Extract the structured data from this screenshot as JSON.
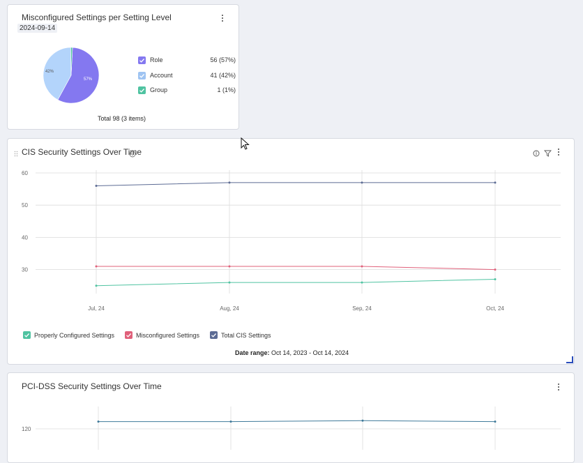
{
  "widget1": {
    "title": "Misconfigured Settings per Setting Level",
    "date": "2024-09-14",
    "pie": {
      "slice_labels": [
        "57%",
        "42%"
      ],
      "colors": {
        "role": "#8478f0",
        "account": "#b3d4fb",
        "group": "#4fc3a1"
      }
    },
    "legend": [
      {
        "label": "Role",
        "value": "56 (57%)",
        "color": "#8478f0"
      },
      {
        "label": "Account",
        "value": "41 (42%)",
        "color": "#9fc4f2"
      },
      {
        "label": "Group",
        "value": "1 (1%)",
        "color": "#4fc3a1"
      }
    ],
    "total": "Total 98 (3 items)"
  },
  "widget2": {
    "title": "CIS Security Settings Over Time",
    "legend": [
      {
        "label": "Properly Configured Settings",
        "color": "#4fc3a1"
      },
      {
        "label": "Misconfigured Settings",
        "color": "#e0607a"
      },
      {
        "label": "Total CIS Settings",
        "color": "#5c6b94"
      }
    ],
    "date_range_label": "Date range:",
    "date_range_value": "Oct 14, 2023 - Oct 14, 2024"
  },
  "widget3": {
    "title": "PCI-DSS Security Settings Over Time"
  },
  "chart_data": [
    {
      "type": "pie",
      "title": "Misconfigured Settings per Setting Level",
      "categories": [
        "Role",
        "Account",
        "Group"
      ],
      "values": [
        56,
        41,
        1
      ]
    },
    {
      "type": "line",
      "title": "CIS Security Settings Over Time",
      "categories": [
        "Jul, 24",
        "Aug, 24",
        "Sep, 24",
        "Oct, 24"
      ],
      "y_ticks": [
        30,
        40,
        50,
        60
      ],
      "ylim": [
        22,
        60
      ],
      "series": [
        {
          "name": "Properly Configured Settings",
          "values": [
            25,
            26,
            26,
            27
          ],
          "color": "#4fc3a1"
        },
        {
          "name": "Misconfigured Settings",
          "values": [
            31,
            31,
            31,
            30
          ],
          "color": "#e0607a"
        },
        {
          "name": "Total CIS Settings",
          "values": [
            56,
            57,
            57,
            57
          ],
          "color": "#5c6b94"
        }
      ],
      "grid": true,
      "legend_position": "bottom"
    },
    {
      "type": "line",
      "title": "PCI-DSS Security Settings Over Time",
      "y_ticks": [
        120
      ],
      "series": [
        {
          "values": [
            124,
            124,
            124.5,
            124
          ],
          "color": "#3f7a9a"
        }
      ],
      "grid": true
    }
  ]
}
